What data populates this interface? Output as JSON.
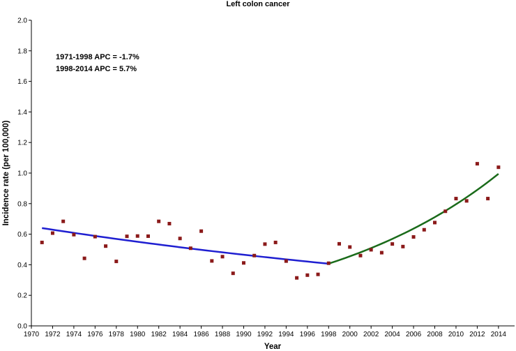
{
  "chart_data": {
    "type": "scatter",
    "title": "Left colon cancer",
    "xlabel": "Year",
    "ylabel": "Incidence rate (per 100,000)",
    "xlim": [
      1970,
      2015
    ],
    "ylim": [
      0,
      2.0
    ],
    "x_ticks": [
      1970,
      1972,
      1974,
      1976,
      1978,
      1980,
      1982,
      1984,
      1986,
      1988,
      1990,
      1992,
      1994,
      1996,
      1998,
      2000,
      2002,
      2004,
      2006,
      2008,
      2010,
      2012,
      2014
    ],
    "y_ticks": [
      "0.0",
      "0.2",
      "0.4",
      "0.6",
      "0.8",
      "1.0",
      "1.2",
      "1.4",
      "1.6",
      "1.8",
      "2.0"
    ],
    "grid": false,
    "annotations": [
      "1971-1998 APC = -1.7%",
      "1998-2014 APC = 5.7%"
    ],
    "observed": {
      "marker_color": "#8b1a1a",
      "x": [
        1971,
        1972,
        1973,
        1974,
        1975,
        1976,
        1977,
        1978,
        1979,
        1980,
        1981,
        1982,
        1983,
        1984,
        1985,
        1986,
        1987,
        1988,
        1989,
        1990,
        1991,
        1992,
        1993,
        1994,
        1995,
        1996,
        1997,
        1998,
        1999,
        2000,
        2001,
        2002,
        2003,
        2004,
        2005,
        2006,
        2007,
        2008,
        2009,
        2010,
        2011,
        2012,
        2013,
        2014
      ],
      "y": [
        0.546,
        0.607,
        0.684,
        0.597,
        0.442,
        0.584,
        0.522,
        0.422,
        0.586,
        0.588,
        0.587,
        0.684,
        0.669,
        0.572,
        0.508,
        0.62,
        0.425,
        0.453,
        0.344,
        0.412,
        0.46,
        0.535,
        0.546,
        0.424,
        0.314,
        0.332,
        0.337,
        0.41,
        0.537,
        0.516,
        0.46,
        0.498,
        0.479,
        0.536,
        0.519,
        0.582,
        0.629,
        0.676,
        0.75,
        0.833,
        0.818,
        1.061,
        0.833,
        1.038
      ]
    },
    "trend_segments": [
      {
        "label": "1971-1998",
        "color": "#1f1fd1",
        "x_start": 1971,
        "x_end": 1998,
        "y_start": 0.64,
        "y_end": 0.407,
        "apc": -1.7
      },
      {
        "label": "1998-2014",
        "color": "#1a6b1a",
        "x_start": 1998,
        "x_end": 2014,
        "y_start": 0.407,
        "y_end": 0.995,
        "apc": 5.7
      }
    ]
  }
}
